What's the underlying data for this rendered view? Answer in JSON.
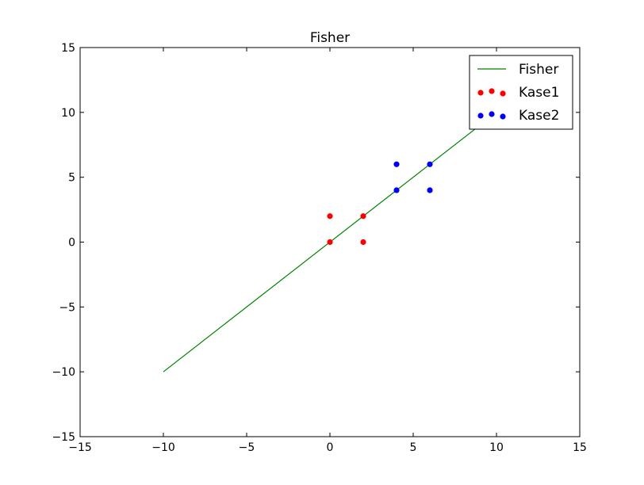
{
  "chart_data": {
    "type": "scatter",
    "title": "Fisher",
    "xlabel": "",
    "ylabel": "",
    "xlim": [
      -15,
      15
    ],
    "ylim": [
      -15,
      15
    ],
    "xticks": [
      -15,
      -10,
      -5,
      0,
      5,
      10,
      15
    ],
    "yticks": [
      -15,
      -10,
      -5,
      0,
      5,
      10,
      15
    ],
    "xtick_labels": [
      "−15",
      "−10",
      "−5",
      "0",
      "5",
      "10",
      "15"
    ],
    "ytick_labels": [
      "−15",
      "−10",
      "−5",
      "0",
      "5",
      "10",
      "15"
    ],
    "grid": false,
    "legend_position": "top-right",
    "series": [
      {
        "name": "Fisher",
        "kind": "line",
        "color": "#008000",
        "x": [
          -10,
          10
        ],
        "y": [
          -10,
          10
        ]
      },
      {
        "name": "Kase1",
        "kind": "scatter",
        "color": "#ff0000",
        "x": [
          0,
          0,
          2,
          2
        ],
        "y": [
          0,
          2,
          0,
          2
        ]
      },
      {
        "name": "Kase2",
        "kind": "scatter",
        "color": "#0000ff",
        "x": [
          4,
          4,
          6,
          6
        ],
        "y": [
          4,
          6,
          4,
          6
        ]
      }
    ]
  }
}
